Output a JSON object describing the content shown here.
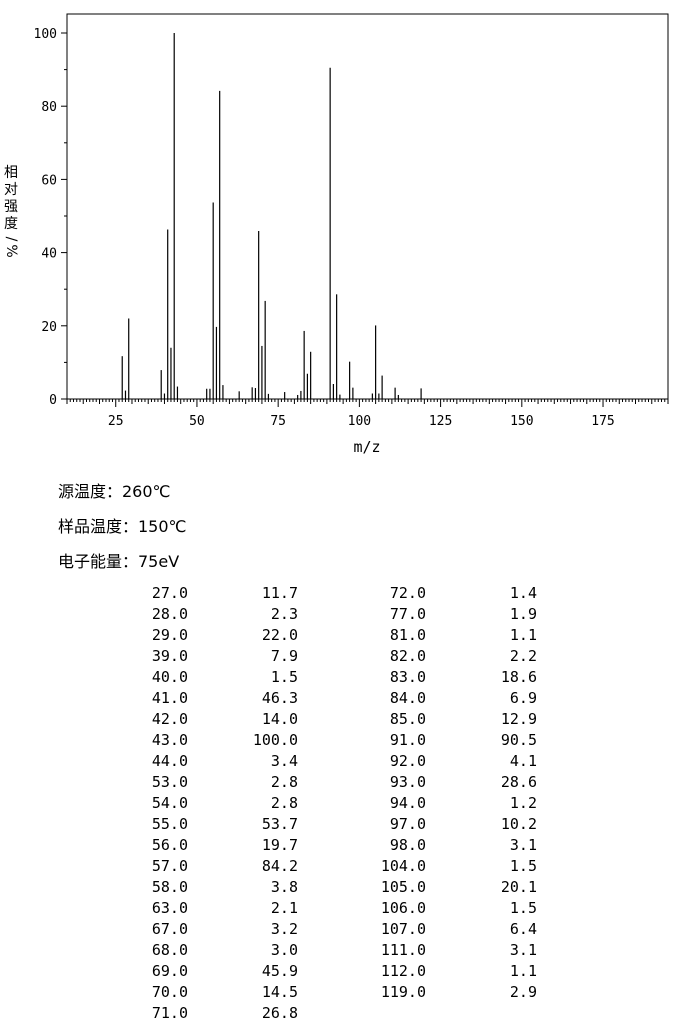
{
  "chart_data": {
    "type": "bar",
    "xlabel": "m/z",
    "ylabel": "相对强度/%",
    "xlim": [
      10,
      195
    ],
    "ylim": [
      0,
      100
    ],
    "x_ticks": [
      25,
      50,
      75,
      100,
      125,
      150,
      175
    ],
    "y_ticks": [
      0,
      20,
      40,
      60,
      80,
      100
    ],
    "peaks": [
      {
        "mz": 27.0,
        "intensity": 11.7
      },
      {
        "mz": 28.0,
        "intensity": 2.3
      },
      {
        "mz": 29.0,
        "intensity": 22.0
      },
      {
        "mz": 39.0,
        "intensity": 7.9
      },
      {
        "mz": 40.0,
        "intensity": 1.5
      },
      {
        "mz": 41.0,
        "intensity": 46.3
      },
      {
        "mz": 42.0,
        "intensity": 14.0
      },
      {
        "mz": 43.0,
        "intensity": 100.0
      },
      {
        "mz": 44.0,
        "intensity": 3.4
      },
      {
        "mz": 53.0,
        "intensity": 2.8
      },
      {
        "mz": 54.0,
        "intensity": 2.8
      },
      {
        "mz": 55.0,
        "intensity": 53.7
      },
      {
        "mz": 56.0,
        "intensity": 19.7
      },
      {
        "mz": 57.0,
        "intensity": 84.2
      },
      {
        "mz": 58.0,
        "intensity": 3.8
      },
      {
        "mz": 63.0,
        "intensity": 2.1
      },
      {
        "mz": 67.0,
        "intensity": 3.2
      },
      {
        "mz": 68.0,
        "intensity": 3.0
      },
      {
        "mz": 69.0,
        "intensity": 45.9
      },
      {
        "mz": 70.0,
        "intensity": 14.5
      },
      {
        "mz": 71.0,
        "intensity": 26.8
      },
      {
        "mz": 72.0,
        "intensity": 1.4
      },
      {
        "mz": 77.0,
        "intensity": 1.9
      },
      {
        "mz": 81.0,
        "intensity": 1.1
      },
      {
        "mz": 82.0,
        "intensity": 2.2
      },
      {
        "mz": 83.0,
        "intensity": 18.6
      },
      {
        "mz": 84.0,
        "intensity": 6.9
      },
      {
        "mz": 85.0,
        "intensity": 12.9
      },
      {
        "mz": 91.0,
        "intensity": 90.5
      },
      {
        "mz": 92.0,
        "intensity": 4.1
      },
      {
        "mz": 93.0,
        "intensity": 28.6
      },
      {
        "mz": 94.0,
        "intensity": 1.2
      },
      {
        "mz": 97.0,
        "intensity": 10.2
      },
      {
        "mz": 98.0,
        "intensity": 3.1
      },
      {
        "mz": 104.0,
        "intensity": 1.5
      },
      {
        "mz": 105.0,
        "intensity": 20.1
      },
      {
        "mz": 106.0,
        "intensity": 1.5
      },
      {
        "mz": 107.0,
        "intensity": 6.4
      },
      {
        "mz": 111.0,
        "intensity": 3.1
      },
      {
        "mz": 112.0,
        "intensity": 1.1
      },
      {
        "mz": 119.0,
        "intensity": 2.9
      }
    ],
    "grid": false
  },
  "conditions": {
    "source_temp": "源温度：260℃",
    "sample_temp": "样品温度：150℃",
    "electron_energy": "电子能量：75eV"
  },
  "table": {
    "rows": [
      [
        "27.0",
        "11.7",
        "72.0",
        "1.4"
      ],
      [
        "28.0",
        "2.3",
        "77.0",
        "1.9"
      ],
      [
        "29.0",
        "22.0",
        "81.0",
        "1.1"
      ],
      [
        "39.0",
        "7.9",
        "82.0",
        "2.2"
      ],
      [
        "40.0",
        "1.5",
        "83.0",
        "18.6"
      ],
      [
        "41.0",
        "46.3",
        "84.0",
        "6.9"
      ],
      [
        "42.0",
        "14.0",
        "85.0",
        "12.9"
      ],
      [
        "43.0",
        "100.0",
        "91.0",
        "90.5"
      ],
      [
        "44.0",
        "3.4",
        "92.0",
        "4.1"
      ],
      [
        "53.0",
        "2.8",
        "93.0",
        "28.6"
      ],
      [
        "54.0",
        "2.8",
        "94.0",
        "1.2"
      ],
      [
        "55.0",
        "53.7",
        "97.0",
        "10.2"
      ],
      [
        "56.0",
        "19.7",
        "98.0",
        "3.1"
      ],
      [
        "57.0",
        "84.2",
        "104.0",
        "1.5"
      ],
      [
        "58.0",
        "3.8",
        "105.0",
        "20.1"
      ],
      [
        "63.0",
        "2.1",
        "106.0",
        "1.5"
      ],
      [
        "67.0",
        "3.2",
        "107.0",
        "6.4"
      ],
      [
        "68.0",
        "3.0",
        "111.0",
        "3.1"
      ],
      [
        "69.0",
        "45.9",
        "112.0",
        "1.1"
      ],
      [
        "70.0",
        "14.5",
        "119.0",
        "2.9"
      ],
      [
        "71.0",
        "26.8",
        "",
        ""
      ]
    ]
  }
}
